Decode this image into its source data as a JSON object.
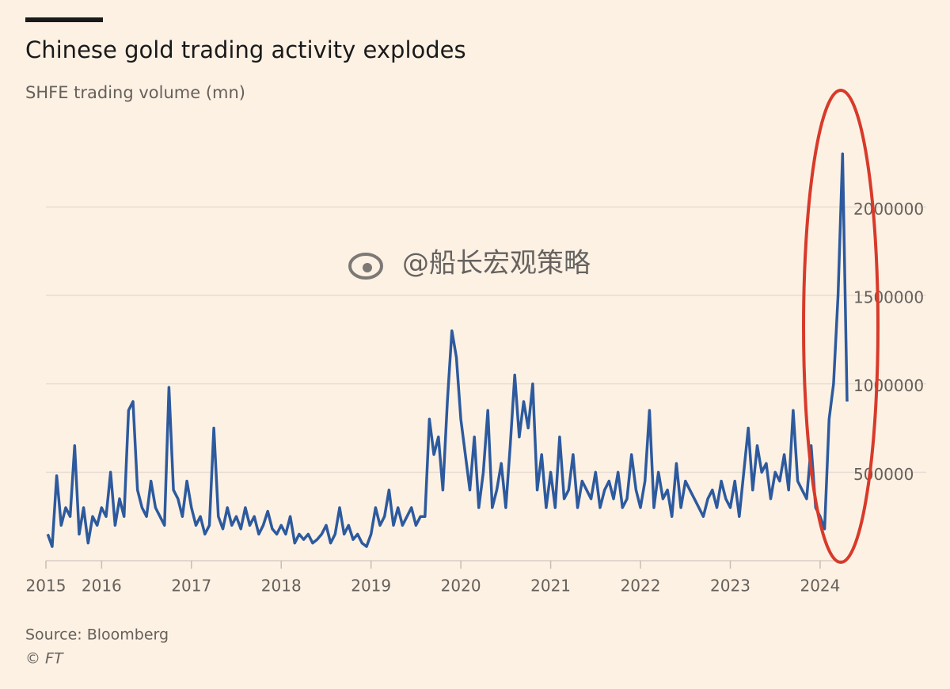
{
  "chart_data": {
    "type": "line",
    "title": "Chinese gold trading activity explodes",
    "subtitle": "SHFE trading volume (mn)",
    "source": "Source: Bloomberg",
    "credit": "© FT",
    "watermark": "@船长宏观策略",
    "color": "#2d5a9e",
    "grid": true,
    "xlim": [
      2015.38,
      2024.6
    ],
    "ylim": [
      0,
      2400000
    ],
    "xticks": [
      {
        "value": 2015.38,
        "label": "2015"
      },
      2016,
      2017,
      2018,
      2019,
      2020,
      2021,
      2022,
      2023,
      2024
    ],
    "yticks": [
      500000,
      1000000,
      1500000,
      2000000
    ],
    "x": [
      2015.4,
      2015.45,
      2015.5,
      2015.55,
      2015.6,
      2015.65,
      2015.7,
      2015.75,
      2015.8,
      2015.85,
      2015.9,
      2015.95,
      2016.0,
      2016.05,
      2016.1,
      2016.15,
      2016.2,
      2016.25,
      2016.3,
      2016.35,
      2016.4,
      2016.45,
      2016.5,
      2016.55,
      2016.6,
      2016.65,
      2016.7,
      2016.75,
      2016.8,
      2016.85,
      2016.9,
      2016.95,
      2017.0,
      2017.05,
      2017.1,
      2017.15,
      2017.2,
      2017.25,
      2017.3,
      2017.35,
      2017.4,
      2017.45,
      2017.5,
      2017.55,
      2017.6,
      2017.65,
      2017.7,
      2017.75,
      2017.8,
      2017.85,
      2017.9,
      2017.95,
      2018.0,
      2018.05,
      2018.1,
      2018.15,
      2018.2,
      2018.25,
      2018.3,
      2018.35,
      2018.4,
      2018.45,
      2018.5,
      2018.55,
      2018.6,
      2018.65,
      2018.7,
      2018.75,
      2018.8,
      2018.85,
      2018.9,
      2018.95,
      2019.0,
      2019.05,
      2019.1,
      2019.15,
      2019.2,
      2019.25,
      2019.3,
      2019.35,
      2019.4,
      2019.45,
      2019.5,
      2019.55,
      2019.6,
      2019.65,
      2019.7,
      2019.75,
      2019.8,
      2019.85,
      2019.9,
      2019.95,
      2020.0,
      2020.05,
      2020.1,
      2020.15,
      2020.2,
      2020.25,
      2020.3,
      2020.35,
      2020.4,
      2020.45,
      2020.5,
      2020.55,
      2020.6,
      2020.65,
      2020.7,
      2020.75,
      2020.8,
      2020.85,
      2020.9,
      2020.95,
      2021.0,
      2021.05,
      2021.1,
      2021.15,
      2021.2,
      2021.25,
      2021.3,
      2021.35,
      2021.4,
      2021.45,
      2021.5,
      2021.55,
      2021.6,
      2021.65,
      2021.7,
      2021.75,
      2021.8,
      2021.85,
      2021.9,
      2021.95,
      2022.0,
      2022.05,
      2022.1,
      2022.15,
      2022.2,
      2022.25,
      2022.3,
      2022.35,
      2022.4,
      2022.45,
      2022.5,
      2022.55,
      2022.6,
      2022.65,
      2022.7,
      2022.75,
      2022.8,
      2022.85,
      2022.9,
      2022.95,
      2023.0,
      2023.05,
      2023.1,
      2023.15,
      2023.2,
      2023.25,
      2023.3,
      2023.35,
      2023.4,
      2023.45,
      2023.5,
      2023.55,
      2023.6,
      2023.65,
      2023.7,
      2023.75,
      2023.8,
      2023.85,
      2023.9,
      2023.95,
      2024.0,
      2024.05,
      2024.1,
      2024.15,
      2024.2,
      2024.25,
      2024.3
    ],
    "values": [
      150000,
      80000,
      480000,
      200000,
      300000,
      250000,
      650000,
      150000,
      300000,
      100000,
      250000,
      200000,
      300000,
      250000,
      500000,
      200000,
      350000,
      250000,
      850000,
      900000,
      400000,
      300000,
      250000,
      450000,
      300000,
      250000,
      200000,
      980000,
      400000,
      350000,
      250000,
      450000,
      300000,
      200000,
      250000,
      150000,
      200000,
      750000,
      250000,
      180000,
      300000,
      200000,
      250000,
      180000,
      300000,
      200000,
      250000,
      150000,
      200000,
      280000,
      180000,
      150000,
      200000,
      150000,
      250000,
      100000,
      150000,
      120000,
      150000,
      100000,
      120000,
      150000,
      200000,
      100000,
      150000,
      300000,
      150000,
      200000,
      120000,
      150000,
      100000,
      80000,
      150000,
      300000,
      200000,
      250000,
      400000,
      200000,
      300000,
      200000,
      250000,
      300000,
      200000,
      250000,
      250000,
      800000,
      600000,
      700000,
      400000,
      900000,
      1300000,
      1150000,
      800000,
      600000,
      400000,
      700000,
      300000,
      500000,
      850000,
      300000,
      400000,
      550000,
      300000,
      650000,
      1050000,
      700000,
      900000,
      750000,
      1000000,
      400000,
      600000,
      300000,
      500000,
      300000,
      700000,
      350000,
      400000,
      600000,
      300000,
      450000,
      400000,
      350000,
      500000,
      300000,
      400000,
      450000,
      350000,
      500000,
      300000,
      350000,
      600000,
      400000,
      300000,
      450000,
      850000,
      300000,
      500000,
      350000,
      400000,
      250000,
      550000,
      300000,
      450000,
      400000,
      350000,
      300000,
      250000,
      350000,
      400000,
      300000,
      450000,
      350000,
      300000,
      450000,
      250000,
      500000,
      750000,
      400000,
      650000,
      500000,
      550000,
      350000,
      500000,
      450000,
      600000,
      400000,
      850000,
      450000,
      400000,
      350000,
      650000,
      300000,
      250000,
      180000,
      800000,
      1000000,
      1500000,
      2300000,
      900000
    ]
  }
}
